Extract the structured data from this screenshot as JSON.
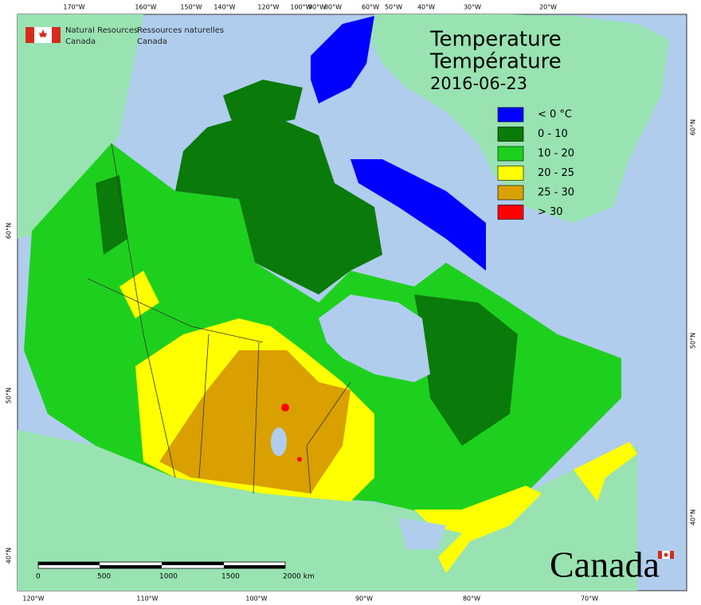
{
  "header": {
    "agency_en": [
      "Natural Resources",
      "Canada"
    ],
    "agency_fr": [
      "Ressources naturelles",
      "Canada"
    ]
  },
  "title": {
    "en": "Temperature",
    "fr": "Température",
    "date": "2016-06-23"
  },
  "legend": [
    {
      "label": "< 0 °C",
      "color": "#0000ff"
    },
    {
      "label": "0 - 10",
      "color": "#0a7a0a"
    },
    {
      "label": "10 - 20",
      "color": "#1ed01e"
    },
    {
      "label": "20 - 25",
      "color": "#ffff00"
    },
    {
      "label": "25 - 30",
      "color": "#d9a000"
    },
    {
      "label": "> 30",
      "color": "#ff0000"
    }
  ],
  "graticule": {
    "top": [
      "170°W",
      "160°W",
      "150°W",
      "140°W",
      "120°W",
      "100°W",
      "90°W",
      "80°W",
      "60°W",
      "50°W",
      "40°W",
      "30°W",
      "20°W"
    ],
    "bottom": [
      "120°W",
      "110°W",
      "100°W",
      "90°W",
      "80°W",
      "70°W"
    ],
    "left": [
      "60°N",
      "50°N",
      "40°N"
    ],
    "right": [
      "60°N",
      "50°N",
      "40°N"
    ]
  },
  "scale_bar": {
    "labels": [
      "0",
      "500",
      "1000",
      "1500",
      "2000 km"
    ]
  },
  "wordmark": "Canada"
}
